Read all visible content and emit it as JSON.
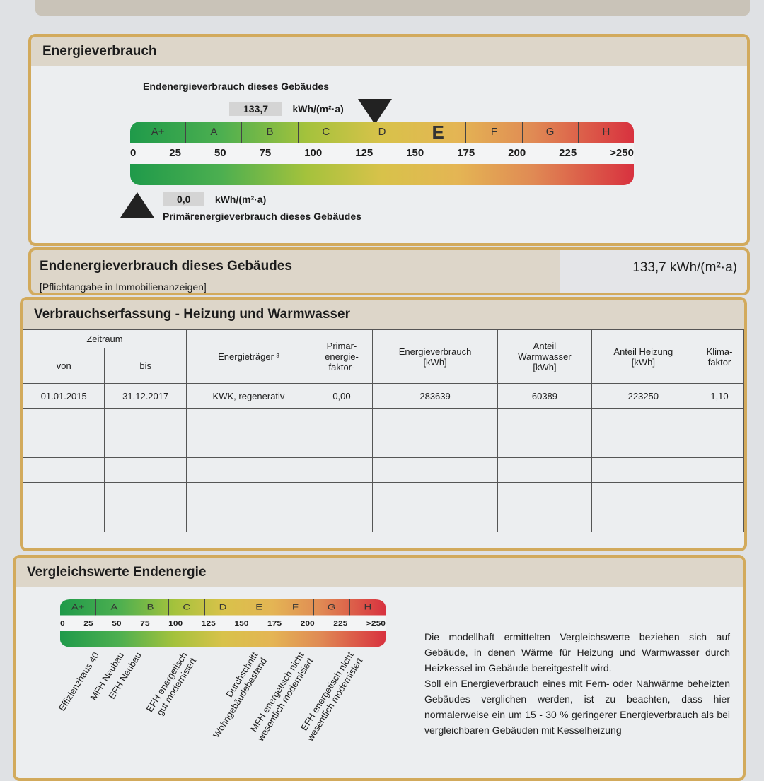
{
  "energieverbrauch": {
    "title": "Energieverbrauch",
    "end_label": "Endenergieverbrauch dieses Gebäudes",
    "end_value": "133,7",
    "end_unit": "kWh/(m²·a)",
    "prim_value": "0,0",
    "prim_unit": "kWh/(m²·a)",
    "prim_label": "Primärenergieverbrauch dieses Gebäudes",
    "classes": [
      "A+",
      "A",
      "B",
      "C",
      "D",
      "E",
      "F",
      "G",
      "H"
    ],
    "active_class": "E",
    "ticks": [
      "0",
      "25",
      "50",
      "75",
      "100",
      "125",
      "150",
      "175",
      "200",
      "225",
      ">250"
    ]
  },
  "summary": {
    "title": "Endenergieverbrauch dieses Gebäudes",
    "note": "[Pflichtangabe in Immobilienanzeigen]",
    "value": "133,7 kWh/(m²·a)"
  },
  "verbrauch": {
    "title": "Verbrauchserfassung - Heizung und Warmwasser",
    "headers": {
      "zeitraum": "Zeitraum",
      "von": "von",
      "bis": "bis",
      "traeger": "Energieträger ³",
      "faktor": "Primär-\nenergie-\nfaktor-",
      "ev": "Energieverbrauch\n[kWh]",
      "ww": "Anteil\nWarmwasser\n[kWh]",
      "hz": "Anteil Heizung\n[kWh]",
      "klima": "Klima-\nfaktor"
    },
    "rows": [
      [
        "01.01.2015",
        "31.12.2017",
        "KWK, regenerativ",
        "0,00",
        "283639",
        "60389",
        "223250",
        "1,10"
      ]
    ]
  },
  "vergleich": {
    "title": "Vergleichswerte Endenergie",
    "labels": [
      "Effizienzhaus 40",
      "MFH Neubau",
      "EFH Neubau",
      "EFH energetisch\ngut modernisiert",
      "Durchschnitt\nWohngebäudebestand",
      "MFH energetisch nicht\nwesentlich modernisiert",
      "EFH energetisch nicht\nwesentlich modernisiert"
    ],
    "text1": "Die modellhaft ermittelten Vergleichswerte beziehen sich auf Gebäude, in denen Wärme für Heizung und Warmwasser durch Heizkessel im Gebäude bereitgestellt wird.",
    "text2": "Soll ein Energieverbrauch eines mit Fern- oder Nahwärme beheizten Gebäudes verglichen werden, ist zu beachten, dass hier normalerweise ein um 15 - 30 % geringerer Energieverbrauch als bei vergleichbaren Gebäuden mit Kesselheizung"
  }
}
